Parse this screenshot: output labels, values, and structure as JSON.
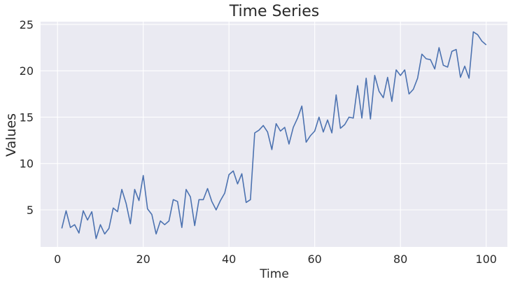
{
  "chart_data": {
    "type": "line",
    "title": "Time Series",
    "xlabel": "Time",
    "ylabel": "Values",
    "xlim": [
      -3.95,
      104.95
    ],
    "ylim": [
      1.0,
      25.3
    ],
    "xticks": [
      0,
      20,
      40,
      60,
      80,
      100
    ],
    "yticks": [
      5,
      10,
      15,
      20,
      25
    ],
    "grid": true,
    "colors": {
      "plot_background": "#eaeaf2",
      "grid": "#ffffff",
      "line": "#4c72b0",
      "text": "#2a2a2a"
    },
    "series": [
      {
        "color": "#4c72b0",
        "x": [
          1,
          2,
          3,
          4,
          5,
          6,
          7,
          8,
          9,
          10,
          11,
          12,
          13,
          14,
          15,
          16,
          17,
          18,
          19,
          20,
          21,
          22,
          23,
          24,
          25,
          26,
          27,
          28,
          29,
          30,
          31,
          32,
          33,
          34,
          35,
          36,
          37,
          38,
          39,
          40,
          41,
          42,
          43,
          44,
          45,
          46,
          47,
          48,
          49,
          50,
          51,
          52,
          53,
          54,
          55,
          56,
          57,
          58,
          59,
          60,
          61,
          62,
          63,
          64,
          65,
          66,
          67,
          68,
          69,
          70,
          71,
          72,
          73,
          74,
          75,
          76,
          77,
          78,
          79,
          80,
          81,
          82,
          83,
          84,
          85,
          86,
          87,
          88,
          89,
          90,
          91,
          92,
          93,
          94,
          95,
          96,
          97,
          98,
          99,
          100
        ],
        "y": [
          3.0,
          4.9,
          3.1,
          3.4,
          2.5,
          4.9,
          3.9,
          4.8,
          1.9,
          3.4,
          2.4,
          3.0,
          5.2,
          4.8,
          7.2,
          5.7,
          3.5,
          7.2,
          6.0,
          8.7,
          5.1,
          4.5,
          2.4,
          3.8,
          3.4,
          3.8,
          6.1,
          5.9,
          3.1,
          7.2,
          6.4,
          3.3,
          6.1,
          6.1,
          7.3,
          5.9,
          5.0,
          6.0,
          6.8,
          8.8,
          9.2,
          7.8,
          8.9,
          5.8,
          6.1,
          13.3,
          13.6,
          14.1,
          13.4,
          11.5,
          14.3,
          13.5,
          13.9,
          12.1,
          13.9,
          14.9,
          16.2,
          12.3,
          13.0,
          13.5,
          15.0,
          13.4,
          14.7,
          13.3,
          17.4,
          13.8,
          14.2,
          15.0,
          14.9,
          18.4,
          14.9,
          19.2,
          14.8,
          19.5,
          17.8,
          17.1,
          19.3,
          16.7,
          20.1,
          19.5,
          20.1,
          17.5,
          18.0,
          19.2,
          21.8,
          21.3,
          21.2,
          20.2,
          22.5,
          20.6,
          20.4,
          22.1,
          22.3,
          19.3,
          20.5,
          19.2,
          24.2,
          23.9,
          23.2,
          22.8
        ]
      }
    ]
  }
}
